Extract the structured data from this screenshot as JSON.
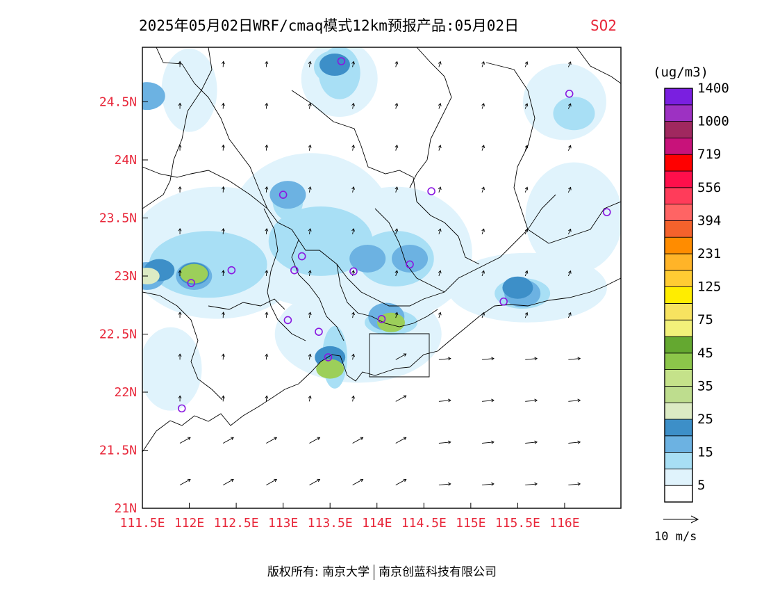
{
  "title": {
    "main": "2025年05月02日WRF/cmaq模式12km预报产品:05月02日",
    "species": "SO2",
    "species_color": "#e8273a"
  },
  "map": {
    "lon_range": [
      111.5,
      116.6
    ],
    "lat_range": [
      21.0,
      24.97
    ],
    "x_ticks": [
      {
        "value": 111.5,
        "label": "111.5E"
      },
      {
        "value": 112.0,
        "label": "112E"
      },
      {
        "value": 112.5,
        "label": "112.5E"
      },
      {
        "value": 113.0,
        "label": "113E"
      },
      {
        "value": 113.5,
        "label": "113.5E"
      },
      {
        "value": 114.0,
        "label": "114E"
      },
      {
        "value": 114.5,
        "label": "114.5E"
      },
      {
        "value": 115.0,
        "label": "115E"
      },
      {
        "value": 115.5,
        "label": "115.5E"
      },
      {
        "value": 116.0,
        "label": "116E"
      }
    ],
    "y_ticks": [
      {
        "value": 21.0,
        "label": "21N"
      },
      {
        "value": 21.5,
        "label": "21.5N"
      },
      {
        "value": 22.0,
        "label": "22N"
      },
      {
        "value": 22.5,
        "label": "22.5N"
      },
      {
        "value": 23.0,
        "label": "23N"
      },
      {
        "value": 23.5,
        "label": "23.5N"
      },
      {
        "value": 24.0,
        "label": "24N"
      },
      {
        "value": 24.5,
        "label": "24.5N"
      }
    ],
    "tick_label_color": "#e8273a",
    "concentration_patches": [
      {
        "lon": 111.55,
        "lat": 23.0,
        "level": 2
      },
      {
        "lon": 111.68,
        "lat": 23.05,
        "level": 3
      },
      {
        "lon": 111.55,
        "lat": 23.0,
        "level": 4
      },
      {
        "lon": 112.05,
        "lat": 23.0,
        "level": 2
      },
      {
        "lon": 112.05,
        "lat": 23.02,
        "level": 3
      },
      {
        "lon": 112.05,
        "lat": 23.02,
        "level": 5
      },
      {
        "lon": 112.4,
        "lat": 23.2,
        "level": 1
      },
      {
        "lon": 113.05,
        "lat": 23.7,
        "level": 2
      },
      {
        "lon": 113.55,
        "lat": 24.8,
        "level": 1
      },
      {
        "lon": 113.55,
        "lat": 24.82,
        "level": 3
      },
      {
        "lon": 113.5,
        "lat": 22.3,
        "level": 3
      },
      {
        "lon": 113.5,
        "lat": 22.2,
        "level": 5
      },
      {
        "lon": 114.1,
        "lat": 22.65,
        "level": 2
      },
      {
        "lon": 114.15,
        "lat": 22.6,
        "level": 5
      },
      {
        "lon": 114.35,
        "lat": 23.15,
        "level": 2
      },
      {
        "lon": 113.9,
        "lat": 23.15,
        "level": 2
      },
      {
        "lon": 115.55,
        "lat": 22.85,
        "level": 2
      },
      {
        "lon": 115.5,
        "lat": 22.9,
        "level": 3
      },
      {
        "lon": 111.55,
        "lat": 24.55,
        "level": 2
      },
      {
        "lon": 116.1,
        "lat": 24.4,
        "level": 1
      }
    ],
    "monitoring_sites": [
      {
        "lon": 113.62,
        "lat": 24.85
      },
      {
        "lon": 116.05,
        "lat": 24.57
      },
      {
        "lon": 113.0,
        "lat": 23.7
      },
      {
        "lon": 114.58,
        "lat": 23.73
      },
      {
        "lon": 116.45,
        "lat": 23.55
      },
      {
        "lon": 112.45,
        "lat": 23.05
      },
      {
        "lon": 112.02,
        "lat": 22.94
      },
      {
        "lon": 113.2,
        "lat": 23.17
      },
      {
        "lon": 113.12,
        "lat": 23.05
      },
      {
        "lon": 113.75,
        "lat": 23.04
      },
      {
        "lon": 114.35,
        "lat": 23.1
      },
      {
        "lon": 115.35,
        "lat": 22.78
      },
      {
        "lon": 113.05,
        "lat": 22.62
      },
      {
        "lon": 113.38,
        "lat": 22.52
      },
      {
        "lon": 114.05,
        "lat": 22.63
      },
      {
        "lon": 113.48,
        "lat": 22.3
      },
      {
        "lon": 111.92,
        "lat": 21.86
      }
    ],
    "site_marker_color": "#8a18e0",
    "wind_vectors": "sampled field: SE-to-NE flow, stronger over sea"
  },
  "colorbar": {
    "unit": "(ug/m3)",
    "colors": [
      "#ffffff",
      "#e0f3fc",
      "#a8dff5",
      "#6cb2e2",
      "#3d8fc8",
      "#dcebc4",
      "#bedd8e",
      "#c5e28a",
      "#8cc64a",
      "#64a830",
      "#f2f17a",
      "#f7e360",
      "#ffed00",
      "#ffcc33",
      "#ffb428",
      "#ff8c00",
      "#f4622c",
      "#ff6464",
      "#ff3c5a",
      "#ff0f4b",
      "#ff0000",
      "#c8127a",
      "#a0285f",
      "#9d31c2",
      "#7a1fe0"
    ],
    "labels": [
      "5",
      "15",
      "25",
      "35",
      "45",
      "75",
      "125",
      "231",
      "394",
      "556",
      "719",
      "1000",
      "1400"
    ]
  },
  "wind_legend": {
    "label": "10 m/s"
  },
  "footer": {
    "left": "版权所有: 南京大学",
    "right": "南京创蓝科技有限公司"
  }
}
